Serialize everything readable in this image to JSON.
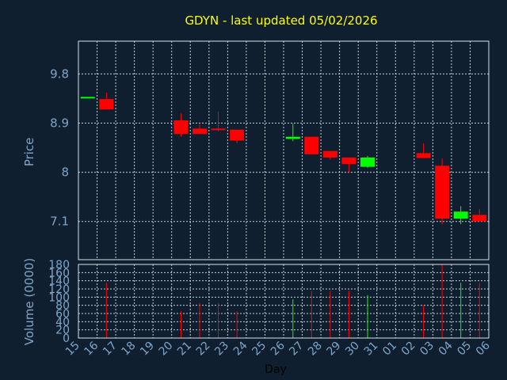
{
  "chart_data": {
    "type": "candlestick",
    "title": "GDYN - last updated 05/02/2026",
    "price_ylabel": "Price",
    "volume_ylabel": "Volume (0000)",
    "xlabel": "Day",
    "x_ticks": [
      "15",
      "16",
      "17",
      "18",
      "19",
      "20",
      "21",
      "22",
      "23",
      "24",
      "25",
      "26",
      "27",
      "28",
      "29",
      "30",
      "31",
      "01",
      "02",
      "03",
      "04",
      "05",
      "06"
    ],
    "price_ticks": [
      "9.8",
      "8.9",
      "8",
      "7.1"
    ],
    "price_ylim": [
      6.4,
      10.4
    ],
    "volume_ticks": [
      "0",
      "20",
      "40",
      "60",
      "80",
      "100",
      "120",
      "140",
      "160",
      "180"
    ],
    "volume_ylim": [
      0,
      180
    ],
    "colors": {
      "up": "#00ff00",
      "down": "#ff0000",
      "background": "#0f1f30",
      "title": "#ffff00",
      "axis_text": "#7fa6c8"
    },
    "candles": [
      {
        "x": "15",
        "open": 9.38,
        "high": 9.38,
        "low": 9.38,
        "close": 9.38,
        "volume": 0
      },
      {
        "x": "16",
        "open": 9.34,
        "high": 9.46,
        "low": 9.15,
        "close": 9.15,
        "volume": 135
      },
      {
        "x": "20",
        "open": 8.95,
        "high": 9.08,
        "low": 8.65,
        "close": 8.7,
        "volume": 65
      },
      {
        "x": "21",
        "open": 8.8,
        "high": 8.88,
        "low": 8.7,
        "close": 8.7,
        "volume": 85
      },
      {
        "x": "22",
        "open": 8.8,
        "high": 9.11,
        "low": 8.75,
        "close": 8.79,
        "volume": 85
      },
      {
        "x": "23",
        "open": 8.78,
        "high": 8.78,
        "low": 8.53,
        "close": 8.58,
        "volume": 65
      },
      {
        "x": "26",
        "open": 8.61,
        "high": 8.89,
        "low": 8.57,
        "close": 8.65,
        "volume": 95
      },
      {
        "x": "27",
        "open": 8.65,
        "high": 8.65,
        "low": 8.33,
        "close": 8.33,
        "volume": 115
      },
      {
        "x": "28",
        "open": 8.39,
        "high": 8.39,
        "low": 8.23,
        "close": 8.27,
        "volume": 115
      },
      {
        "x": "29",
        "open": 8.27,
        "high": 8.27,
        "low": 8.0,
        "close": 8.15,
        "volume": 115
      },
      {
        "x": "30",
        "open": 8.1,
        "high": 8.3,
        "low": 8.08,
        "close": 8.27,
        "volume": 105
      },
      {
        "x": "02",
        "open": 8.35,
        "high": 8.53,
        "low": 8.26,
        "close": 8.26,
        "volume": 80
      },
      {
        "x": "03",
        "open": 8.12,
        "high": 8.25,
        "low": 7.05,
        "close": 7.15,
        "volume": 180
      },
      {
        "x": "04",
        "open": 7.15,
        "high": 7.38,
        "low": 7.05,
        "close": 7.28,
        "volume": 135
      },
      {
        "x": "05",
        "open": 7.22,
        "high": 7.33,
        "low": 7.1,
        "close": 7.1,
        "volume": 135
      }
    ]
  }
}
